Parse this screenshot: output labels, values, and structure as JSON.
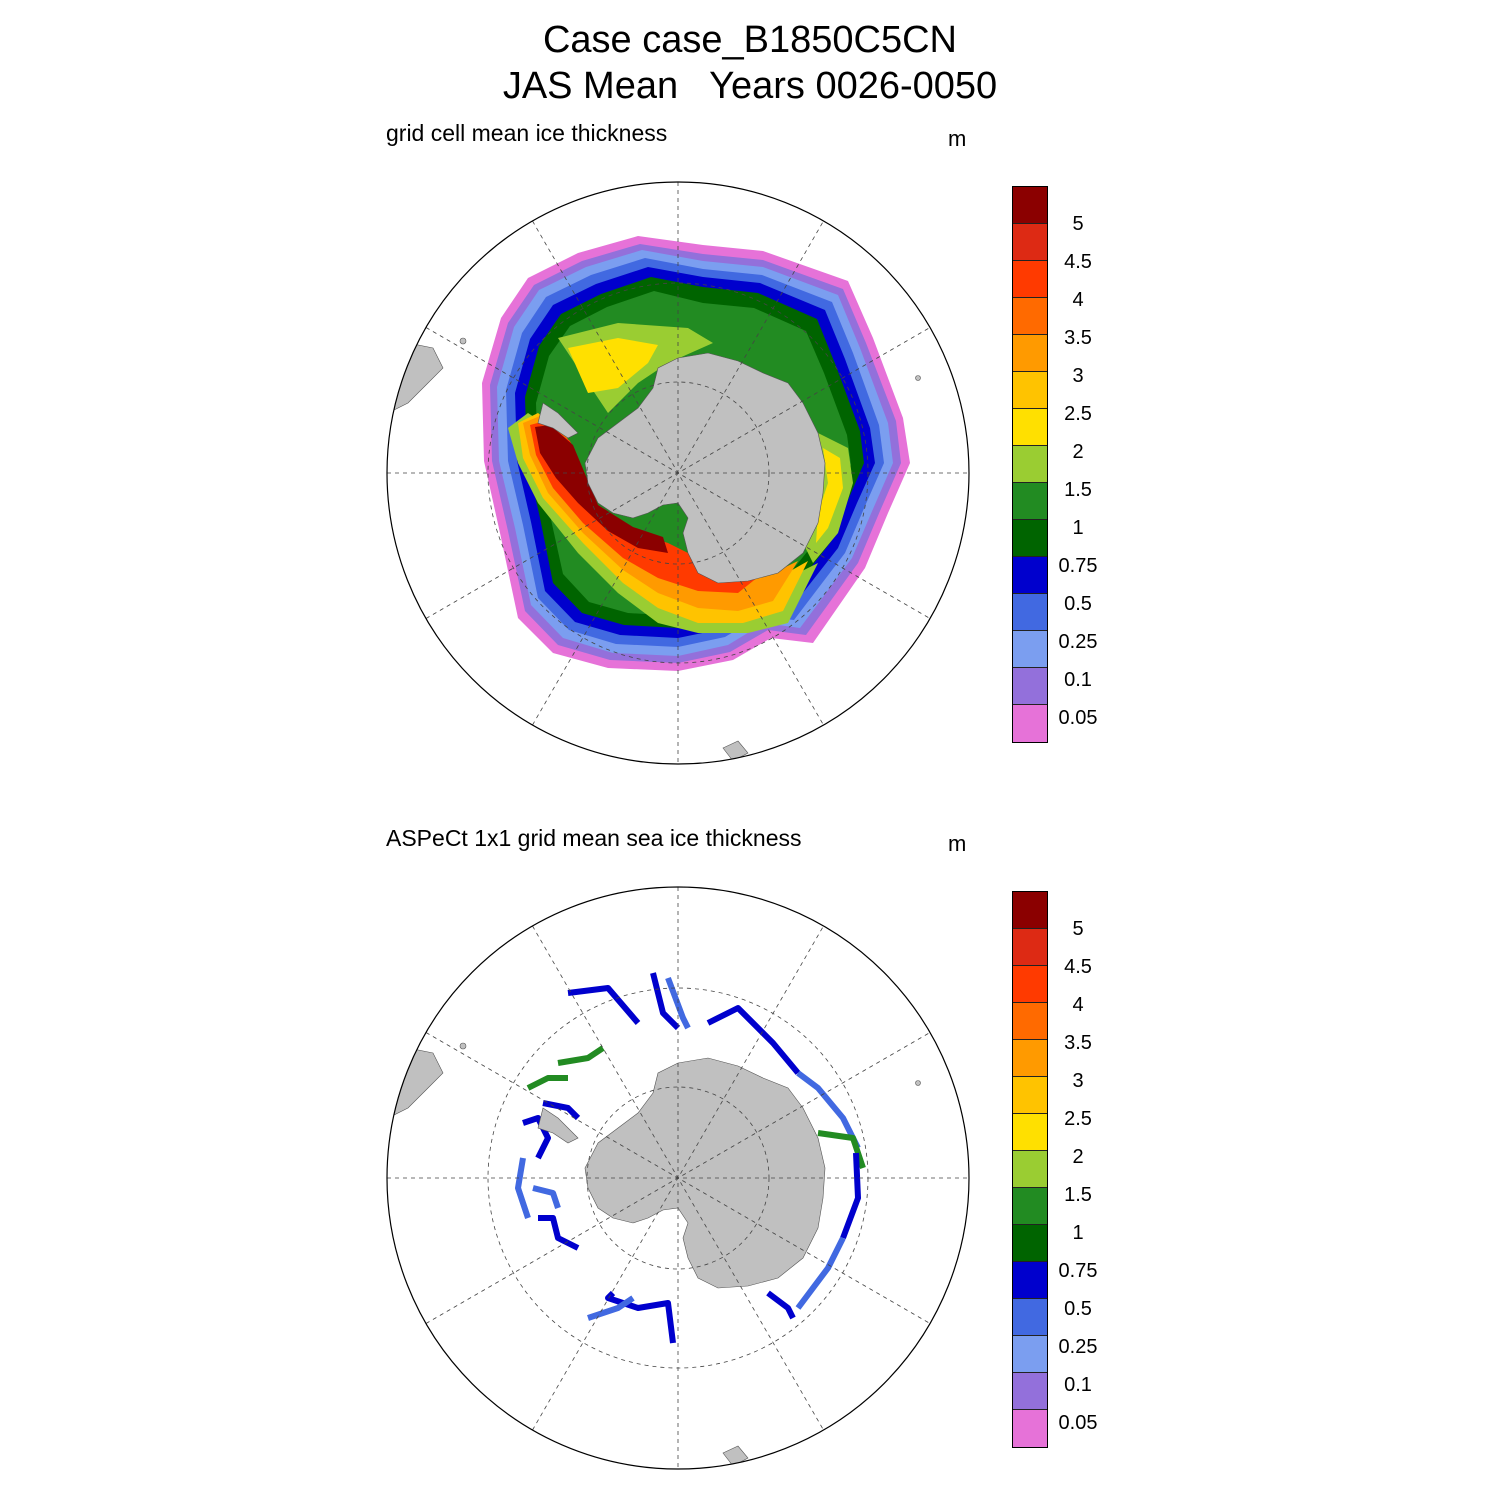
{
  "title": {
    "line1": "Case case_B1850C5CN",
    "line2": "JAS Mean   Years 0026-0050"
  },
  "panels": [
    {
      "title": "grid cell mean ice thickness",
      "units": "m",
      "field_type": "filled-contour"
    },
    {
      "title": "ASPeCt 1x1 grid mean sea ice thickness",
      "units": "m",
      "field_type": "sparse-observations"
    }
  ],
  "colorbar": {
    "colors": [
      "#8b0000",
      "#dd2a14",
      "#ff3a00",
      "#ff6a00",
      "#ff9a00",
      "#ffc300",
      "#ffe000",
      "#9acd32",
      "#228b22",
      "#006400",
      "#0000cd",
      "#4169e1",
      "#7b9ef0",
      "#9370db",
      "#e672d8"
    ],
    "labels": [
      "5",
      "4.5",
      "4",
      "3.5",
      "3",
      "2.5",
      "2",
      "1.5",
      "1",
      "0.75",
      "0.5",
      "0.25",
      "0.1",
      "0.05"
    ]
  },
  "map": {
    "projection": "south polar stereographic",
    "land_color": "#c0c0c0",
    "grid": "dashed meridians every 30 degrees, dashed latitude circles"
  }
}
